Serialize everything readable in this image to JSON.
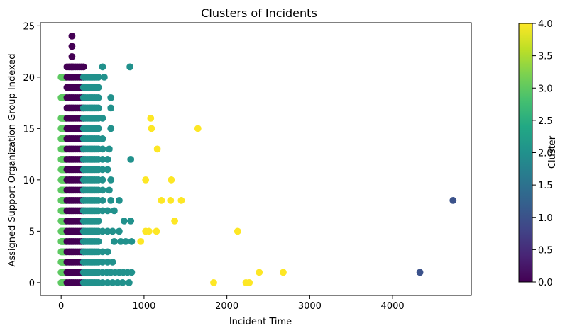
{
  "chart_data": {
    "type": "scatter",
    "title": "Clusters of Incidents",
    "xlabel": "Incident Time",
    "ylabel": "Assigned Support Organization Group Indexed",
    "xlim": [
      -250,
      4950
    ],
    "ylim": [
      -1.25,
      25.3
    ],
    "xticks": [
      0,
      1000,
      2000,
      3000,
      4000
    ],
    "yticks": [
      0,
      5,
      10,
      15,
      20,
      25
    ],
    "grid": false,
    "colorbar": {
      "label": "Cluster",
      "min": 0.0,
      "max": 4.0,
      "ticks": [
        "0.0",
        "0.5",
        "1.0",
        "1.5",
        "2.0",
        "2.5",
        "3.0",
        "3.5",
        "4.0"
      ],
      "colormap": "viridis",
      "stops": [
        "#440154",
        "#482475",
        "#414487",
        "#355f8d",
        "#2a788e",
        "#21918c",
        "#22a884",
        "#44bf70",
        "#7ad151",
        "#bddf26",
        "#fde725"
      ]
    },
    "cluster_colors": {
      "0": "#440154",
      "1": "#3b528b",
      "2": "#21918c",
      "3": "#5ec962",
      "4": "#fde725"
    },
    "cluster_bands": [
      {
        "cluster": 3,
        "x_min": 0,
        "x_max": 60,
        "y": [
          0,
          1,
          2,
          3,
          4,
          5,
          6,
          7,
          8,
          9,
          10,
          11,
          12,
          13,
          14,
          15,
          16,
          18,
          20
        ]
      },
      {
        "cluster": 0,
        "x_min": 70,
        "x_max": 270,
        "y": [
          0,
          1,
          2,
          3,
          4,
          5,
          6,
          7,
          8,
          9,
          10,
          11,
          12,
          13,
          14,
          15,
          16,
          17,
          18,
          19,
          20,
          21
        ]
      },
      {
        "cluster": 2,
        "x_min": 270,
        "x_max": 450,
        "y": [
          0,
          1,
          2,
          3,
          4,
          5,
          6,
          7,
          8,
          9,
          10,
          11,
          12,
          13,
          14,
          15,
          16,
          17,
          18,
          19,
          20
        ]
      }
    ],
    "series": [
      {
        "cluster": 2,
        "x": [
          500,
          550,
          600,
          650,
          700,
          750,
          800,
          850,
          500,
          560,
          620,
          680,
          740,
          820,
          500,
          560,
          620,
          500,
          560,
          640,
          720,
          780,
          850,
          500,
          560,
          620,
          700,
          760,
          840,
          500,
          560,
          640,
          500,
          600,
          700,
          500,
          580,
          500,
          600,
          500,
          560,
          500,
          560,
          500,
          580,
          500,
          600,
          500,
          840,
          520,
          600,
          600,
          500,
          830
        ],
        "y": [
          1,
          1,
          1,
          1,
          1,
          1,
          1,
          1,
          0,
          0,
          0,
          0,
          0,
          0,
          2,
          2,
          2,
          3,
          3,
          4,
          4,
          4,
          4,
          5,
          5,
          5,
          5,
          6,
          6,
          7,
          7,
          7,
          8,
          8,
          8,
          9,
          9,
          10,
          10,
          11,
          11,
          12,
          12,
          13,
          13,
          14,
          15,
          16,
          12,
          20,
          17,
          18,
          21,
          21
        ]
      },
      {
        "cluster": 0,
        "x": [
          130,
          130,
          130,
          130
        ],
        "y": [
          22,
          23,
          24,
          21
        ]
      },
      {
        "cluster": 1,
        "x": [
          4330,
          4730
        ],
        "y": [
          1,
          8
        ]
      },
      {
        "cluster": 4,
        "x": [
          1840,
          2230,
          2270,
          2390,
          2680,
          960,
          1020,
          1060,
          1150,
          2130,
          1370,
          1210,
          1320,
          1450,
          1020,
          1330,
          1160,
          1090,
          1080,
          1650
        ],
        "y": [
          0,
          0,
          0,
          1,
          1,
          4,
          5,
          5,
          5,
          5,
          6,
          8,
          8,
          8,
          10,
          10,
          13,
          15,
          16,
          15
        ]
      }
    ]
  }
}
